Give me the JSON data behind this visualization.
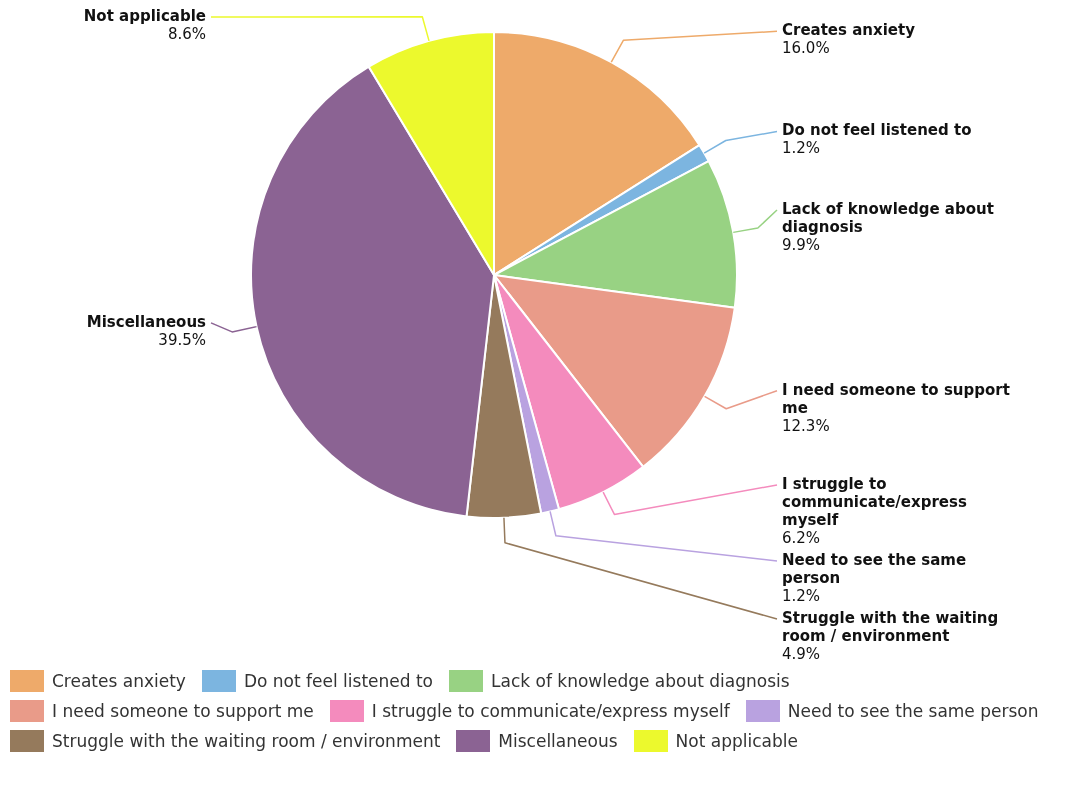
{
  "chart_data": {
    "type": "pie",
    "categories": [
      "Creates anxiety",
      "Do not feel listened to",
      "Lack of knowledge about diagnosis",
      "I need someone to support me",
      "I struggle to communicate/express myself",
      "Need to see the same person",
      "Struggle with the waiting room / environment",
      "Miscellaneous",
      "Not applicable"
    ],
    "values": [
      16.0,
      1.2,
      9.9,
      12.3,
      6.2,
      1.2,
      4.9,
      39.5,
      8.6
    ],
    "colors": [
      "#eeaa6a",
      "#7cb5e0",
      "#98d283",
      "#e99b89",
      "#f48bbd",
      "#b9a2e0",
      "#957a5c",
      "#8b6393",
      "#ecf92d"
    ],
    "value_labels": [
      "16.0%",
      "1.2%",
      "9.9%",
      "12.3%",
      "6.2%",
      "1.2%",
      "4.9%",
      "39.5%",
      "8.6%"
    ],
    "legend": "bottom"
  }
}
